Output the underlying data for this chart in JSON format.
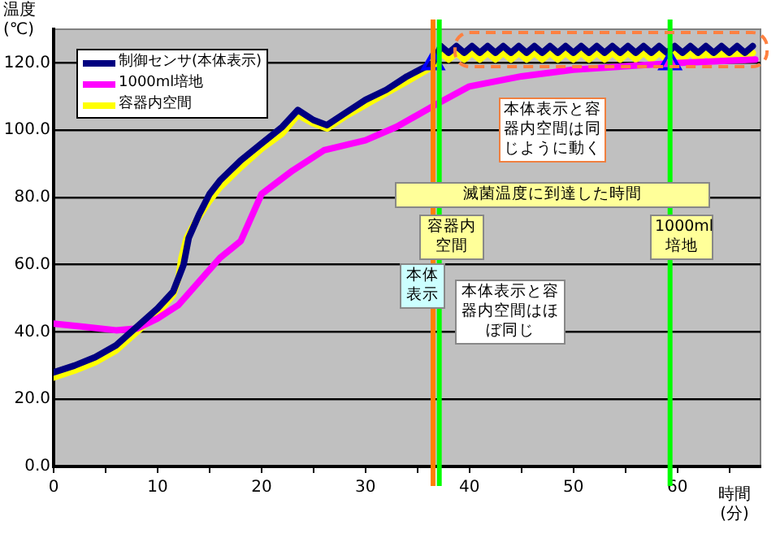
{
  "chart_data": {
    "type": "line",
    "xlabel": "時間\n(分)",
    "ylabel": "温度\n(℃)",
    "xlim": [
      0,
      68
    ],
    "xticks": [
      0,
      {
        "value": 5,
        "label": null
      },
      10,
      {
        "value": 15,
        "label": null
      },
      20,
      {
        "value": 25,
        "label": null
      },
      30,
      {
        "value": 35,
        "label": null
      },
      40,
      {
        "value": 45,
        "label": null
      },
      50,
      {
        "value": 55,
        "label": null
      },
      60,
      {
        "value": 65,
        "label": null
      }
    ],
    "ylim": [
      0,
      130
    ],
    "yticks": [
      {
        "value": 0,
        "label": "0.0"
      },
      {
        "value": 20,
        "label": "20.0"
      },
      {
        "value": 40,
        "label": "40.0"
      },
      {
        "value": 60,
        "label": "60.0"
      },
      {
        "value": 80,
        "label": "80.0"
      },
      {
        "value": 100,
        "label": "100.0"
      },
      {
        "value": 120,
        "label": "120.0"
      }
    ],
    "grid": "y",
    "legend": "top left",
    "marker": "none",
    "line_style": "solid",
    "series": [
      {
        "name": "制御センサ(本体表示)",
        "color": "#000080",
        "x": [
          0,
          2,
          4,
          6,
          8,
          10,
          11.5,
          12.5,
          13,
          14,
          15,
          16,
          18,
          20,
          22,
          23.5,
          25,
          26.3,
          28,
          30,
          32,
          34,
          36.5,
          37.25,
          38,
          38.75,
          39.5,
          40.25,
          41,
          41.75,
          42.5,
          43.25,
          44,
          44.75,
          45.5,
          46.25,
          47,
          47.75,
          48.5,
          49.25,
          50,
          50.75,
          51.5,
          52.25,
          53,
          53.75,
          54.5,
          55.25,
          56,
          56.75,
          57.5,
          58.25,
          59,
          59.75,
          60.5,
          61.25,
          62,
          62.75,
          63.5,
          64.25,
          65,
          65.75,
          66.5,
          67.25
        ],
        "values": [
          28,
          30,
          32.5,
          36,
          41.5,
          47,
          52,
          60,
          68,
          75,
          81,
          85,
          91,
          96,
          101,
          106,
          103,
          101.5,
          105,
          109,
          112,
          116,
          120,
          125,
          123,
          125,
          123,
          125,
          123,
          125,
          123,
          125,
          123,
          125,
          123,
          125,
          123,
          125,
          123,
          125,
          123,
          125,
          123,
          125,
          123,
          125,
          123,
          125,
          123,
          125,
          123,
          125,
          123,
          125,
          123,
          125,
          123,
          125,
          123,
          125,
          123,
          125,
          123,
          125
        ]
      },
      {
        "name": "1000ml培地",
        "color": "#ff00ff",
        "x": [
          0,
          3,
          6,
          8,
          10,
          12,
          14,
          16,
          18,
          20,
          23,
          26,
          30,
          33,
          37,
          40,
          45,
          50,
          55,
          60,
          64,
          67.5
        ],
        "values": [
          42.5,
          41.5,
          40.5,
          41,
          44,
          48,
          55,
          62,
          67,
          81,
          88,
          94,
          97,
          101,
          108,
          113,
          116,
          118,
          119,
          120,
          120.5,
          121
        ]
      },
      {
        "name": "容器内空間",
        "color": "#ffff00",
        "x": [
          0,
          2,
          4,
          6,
          8,
          10,
          11.5,
          12,
          12.3,
          12.8,
          13.5,
          15,
          16,
          18,
          20,
          22,
          23.5,
          25,
          26.3,
          28,
          30,
          32,
          34,
          36.5,
          37.25,
          38,
          38.75,
          39.5,
          40.25,
          41,
          41.75,
          42.5,
          43.25,
          44,
          44.75,
          45.5,
          46.25,
          47,
          47.75,
          48.5,
          49.25,
          50,
          50.75,
          51.5,
          52.25,
          53,
          53.75,
          54.5,
          55.25,
          56,
          56.75,
          57.5,
          58.25,
          59,
          59.75,
          60.5,
          61.25,
          62,
          62.75,
          63.5,
          64.25,
          65,
          65.75,
          66.5,
          67.25
        ],
        "values": [
          26.5,
          28.5,
          31,
          34.5,
          40,
          45.5,
          51,
          56,
          62,
          68,
          72,
          79,
          83,
          89,
          94.5,
          99,
          104.5,
          102,
          100.5,
          104,
          107.5,
          111,
          114.5,
          119,
          123,
          121,
          123,
          121,
          123,
          121,
          123,
          121,
          123,
          121,
          123,
          121,
          123,
          121,
          123,
          121,
          123,
          121,
          123,
          121,
          123,
          121,
          123,
          121,
          123,
          121,
          123,
          121,
          123,
          121,
          123,
          121,
          123,
          121,
          123,
          121,
          123,
          121,
          123,
          121,
          123
        ]
      },
      {
        "type": "scatter",
        "marker": "triangle",
        "color": "#0000ff",
        "x": [
          36.5,
          59.3
        ],
        "values": [
          120,
          120
        ]
      }
    ],
    "ref_lines": [
      {
        "axis": "x",
        "value": 36.5,
        "label": "本体表示",
        "color": "#ff8000"
      },
      {
        "axis": "x",
        "value": 37.1,
        "label": "容器内空間",
        "color": "#00ff00"
      },
      {
        "axis": "x",
        "value": 59.3,
        "label": "1000ml培地",
        "color": "#00ff00"
      }
    ],
    "annotations": [
      "本体表示と容器内空間は同じように動く",
      "滅菌温度に到達した時間",
      "本体表示と容器内空間はほぼ同じ"
    ]
  }
}
